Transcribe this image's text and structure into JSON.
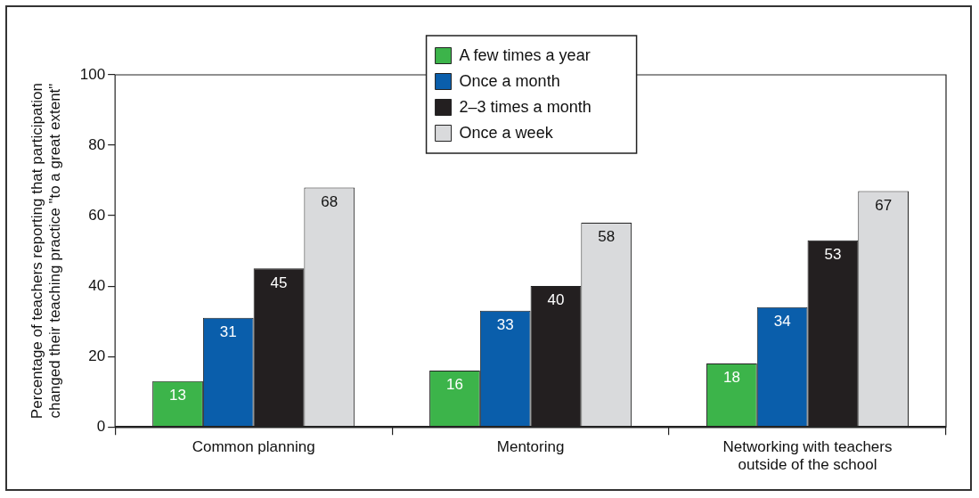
{
  "chart_data": {
    "type": "bar",
    "ylabel": "Percentage of teachers reporting that participation changed their teaching practice \"to a great extent\"",
    "categories": [
      "Common planning",
      "Mentoring",
      "Networking with teachers outside of the school"
    ],
    "series": [
      {
        "name": "A few times a year",
        "color": "#3cb44a",
        "values": [
          13,
          16,
          18
        ]
      },
      {
        "name": "Once a month",
        "color": "#0a5eab",
        "values": [
          31,
          33,
          34
        ]
      },
      {
        "name": "2–3 times a month",
        "color": "#231f20",
        "values": [
          45,
          40,
          53
        ]
      },
      {
        "name": "Once a week",
        "color": "#d9dadc",
        "values": [
          68,
          58,
          67
        ]
      }
    ],
    "ylim": [
      0,
      100
    ],
    "yticks": [
      0,
      20,
      40,
      60,
      80,
      100
    ],
    "data_labels": true,
    "legend": "top",
    "grid": false
  }
}
